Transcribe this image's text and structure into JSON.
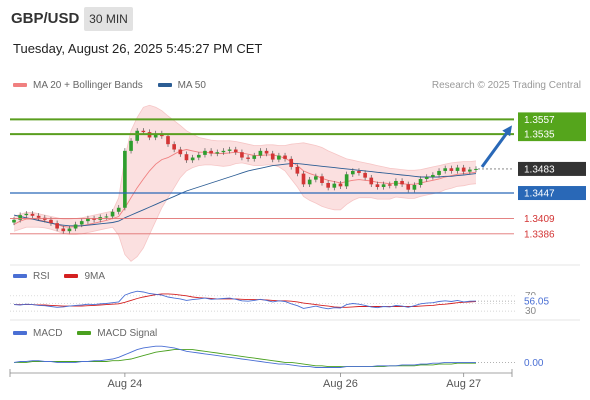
{
  "header": {
    "symbol": "GBP/USD",
    "timeframe": "30 MIN",
    "datetime": "Tuesday, August 26, 2025 5:45:27 PM CET",
    "credit": "Research © 2025 Trading Central"
  },
  "colors": {
    "bollinger": "#f08080",
    "ma50": "#2c5d94",
    "resistance": "#5a9e1f",
    "pivot": "#2968b7",
    "support": "#e07070",
    "rsi": "#4a6fd4",
    "rsi_ma": "#d42020",
    "macd": "#4a6fd4",
    "macd_signal": "#4aa01f",
    "up": "#2e9e2e",
    "down": "#d33535"
  },
  "chart_data": [
    {
      "type": "candlestick",
      "symbol": "GBP/USD",
      "legend": [
        "MA 20 + Bollinger Bands",
        "MA 50"
      ],
      "x_ticks": [
        "Aug 24",
        "Aug 26",
        "Aug 27"
      ],
      "ylim": [
        1.3335,
        1.358
      ],
      "resistance_levels": [
        "1.3557",
        "1.3535"
      ],
      "last_price": "1.3483",
      "pivot": "1.3447",
      "support_levels": [
        "1.3409",
        "1.3386"
      ],
      "close": [
        1.3407,
        1.3414,
        1.3416,
        1.3413,
        1.341,
        1.3407,
        1.3402,
        1.3394,
        1.339,
        1.3394,
        1.34,
        1.3405,
        1.3409,
        1.3407,
        1.3411,
        1.3412,
        1.3419,
        1.3425,
        1.351,
        1.3525,
        1.354,
        1.3538,
        1.353,
        1.3536,
        1.3532,
        1.352,
        1.3512,
        1.3505,
        1.3496,
        1.35,
        1.3504,
        1.351,
        1.3506,
        1.3508,
        1.351,
        1.3512,
        1.3508,
        1.35,
        1.3498,
        1.3503,
        1.351,
        1.3506,
        1.3497,
        1.3503,
        1.3498,
        1.3486,
        1.3476,
        1.346,
        1.3467,
        1.3472,
        1.3462,
        1.3455,
        1.3461,
        1.3457,
        1.3475,
        1.348,
        1.3477,
        1.347,
        1.346,
        1.3456,
        1.346,
        1.3458,
        1.3465,
        1.346,
        1.3452,
        1.3459,
        1.3468,
        1.3471,
        1.3474,
        1.348,
        1.3484,
        1.348,
        1.3485,
        1.3479,
        1.3482,
        1.3483
      ],
      "ma20": [
        1.34,
        1.3405,
        1.3408,
        1.3408,
        1.3407,
        1.3405,
        1.3403,
        1.34,
        1.3397,
        1.3396,
        1.3397,
        1.3398,
        1.34,
        1.3402,
        1.3404,
        1.3406,
        1.3409,
        1.3412,
        1.3425,
        1.344,
        1.3455,
        1.3468,
        1.348,
        1.349,
        1.3497,
        1.35,
        1.3505,
        1.351,
        1.3512,
        1.351,
        1.3508,
        1.3508,
        1.3507,
        1.3506,
        1.3506,
        1.3507,
        1.3508,
        1.3507,
        1.3505,
        1.3503,
        1.3503,
        1.3504,
        1.3504,
        1.3502,
        1.3499,
        1.3494,
        1.3488,
        1.348,
        1.3476,
        1.3473,
        1.3469,
        1.3466,
        1.3464,
        1.3462,
        1.3464,
        1.3466,
        1.3467,
        1.3466,
        1.3465,
        1.3463,
        1.3462,
        1.3461,
        1.3462,
        1.3461,
        1.346,
        1.346,
        1.3462,
        1.3464,
        1.3466,
        1.3468,
        1.3471,
        1.3473,
        1.3475,
        1.3476,
        1.3477,
        1.3478
      ],
      "bb_upper": [
        1.3412,
        1.3415,
        1.3418,
        1.3418,
        1.3416,
        1.3414,
        1.3412,
        1.341,
        1.3408,
        1.3408,
        1.3409,
        1.341,
        1.3412,
        1.3414,
        1.3416,
        1.3418,
        1.342,
        1.344,
        1.35,
        1.354,
        1.356,
        1.3575,
        1.3578,
        1.3575,
        1.357,
        1.3562,
        1.3555,
        1.3548,
        1.354,
        1.3535,
        1.353,
        1.3528,
        1.3526,
        1.3525,
        1.3525,
        1.3525,
        1.3524,
        1.3522,
        1.352,
        1.3518,
        1.3518,
        1.3519,
        1.3519,
        1.3518,
        1.3518,
        1.352,
        1.3521,
        1.3522,
        1.352,
        1.3518,
        1.3515,
        1.351,
        1.3506,
        1.3502,
        1.3498,
        1.3496,
        1.3494,
        1.3492,
        1.349,
        1.3488,
        1.3486,
        1.3484,
        1.3483,
        1.3482,
        1.3481,
        1.3481,
        1.3482,
        1.3484,
        1.3486,
        1.3488,
        1.349,
        1.3492,
        1.3493,
        1.3494,
        1.3494,
        1.3495
      ],
      "bb_lower": [
        1.339,
        1.3393,
        1.3396,
        1.3396,
        1.3396,
        1.3395,
        1.3393,
        1.339,
        1.3387,
        1.3385,
        1.3385,
        1.3386,
        1.3388,
        1.339,
        1.3392,
        1.3394,
        1.3396,
        1.3384,
        1.3355,
        1.3345,
        1.3352,
        1.3365,
        1.3385,
        1.3405,
        1.3425,
        1.344,
        1.3455,
        1.347,
        1.348,
        1.3485,
        1.3488,
        1.3489,
        1.3489,
        1.3488,
        1.3487,
        1.3488,
        1.3491,
        1.3492,
        1.349,
        1.3488,
        1.3488,
        1.3489,
        1.3489,
        1.3486,
        1.348,
        1.3468,
        1.3456,
        1.3442,
        1.3436,
        1.3432,
        1.3427,
        1.3424,
        1.3422,
        1.3422,
        1.343,
        1.3436,
        1.344,
        1.344,
        1.344,
        1.3438,
        1.3438,
        1.3438,
        1.3441,
        1.344,
        1.3439,
        1.3439,
        1.3442,
        1.3444,
        1.3446,
        1.3448,
        1.3452,
        1.3454,
        1.3457,
        1.3458,
        1.346,
        1.3461
      ],
      "ma50": [
        1.3414,
        1.3412,
        1.341,
        1.3408,
        1.3406,
        1.3404,
        1.3402,
        1.34,
        1.3399,
        1.3398,
        1.3398,
        1.3398,
        1.3399,
        1.34,
        1.3401,
        1.3402,
        1.3403,
        1.3405,
        1.341,
        1.3414,
        1.3418,
        1.3422,
        1.3426,
        1.343,
        1.3434,
        1.3438,
        1.3442,
        1.3446,
        1.345,
        1.3453,
        1.3456,
        1.3459,
        1.3462,
        1.3465,
        1.3468,
        1.3471,
        1.3474,
        1.3477,
        1.348,
        1.3482,
        1.3484,
        1.3486,
        1.3488,
        1.3489,
        1.349,
        1.3491,
        1.3491,
        1.349,
        1.3489,
        1.3488,
        1.3487,
        1.3486,
        1.3485,
        1.3484,
        1.3483,
        1.3482,
        1.3481,
        1.348,
        1.3479,
        1.3478,
        1.3477,
        1.3476,
        1.3475,
        1.3474,
        1.3473,
        1.3472,
        1.3471,
        1.3471,
        1.3471,
        1.3471,
        1.3472,
        1.3472,
        1.3473,
        1.3474,
        1.3475,
        1.3476
      ]
    },
    {
      "type": "line",
      "legend": [
        "RSI",
        "9MA"
      ],
      "y_ticks": [
        "70",
        "30"
      ],
      "last_value": "56.05",
      "rsi": [
        47,
        46,
        48,
        47,
        45,
        44,
        42,
        40,
        41,
        43,
        45,
        46,
        48,
        47,
        49,
        50,
        52,
        54,
        72,
        78,
        82,
        80,
        76,
        74,
        72,
        67,
        64,
        62,
        58,
        60,
        62,
        64,
        61,
        62,
        63,
        64,
        61,
        57,
        56,
        58,
        61,
        58,
        54,
        57,
        55,
        49,
        44,
        37,
        40,
        43,
        39,
        36,
        39,
        38,
        47,
        50,
        48,
        45,
        41,
        39,
        42,
        41,
        45,
        43,
        40,
        44,
        49,
        51,
        52,
        55,
        57,
        55,
        58,
        54,
        56,
        56.05
      ],
      "rsi_ma": [
        47,
        47,
        47,
        47,
        46,
        46,
        45,
        44,
        43,
        43,
        43,
        43,
        44,
        45,
        46,
        47,
        48,
        49,
        53,
        58,
        63,
        67,
        70,
        73,
        75,
        75,
        74,
        72,
        70,
        67,
        65,
        64,
        63,
        62,
        62,
        62,
        62,
        61,
        60,
        60,
        60,
        59,
        58,
        57,
        57,
        56,
        54,
        51,
        49,
        47,
        45,
        43,
        41,
        40,
        40,
        41,
        42,
        42,
        42,
        42,
        42,
        42,
        42,
        42,
        42,
        42,
        43,
        44,
        45,
        47,
        48,
        50,
        52,
        53,
        54,
        55
      ]
    },
    {
      "type": "line",
      "legend": [
        "MACD",
        "MACD Signal"
      ],
      "last_value": "0.00",
      "macd": [
        0.0001,
        0.0002,
        0.0002,
        0.0003,
        0.0003,
        0.0002,
        0.0002,
        0.0001,
        0.0001,
        0.0001,
        0.0001,
        0.0002,
        0.0002,
        0.0003,
        0.0003,
        0.0004,
        0.0005,
        0.0007,
        0.001,
        0.0013,
        0.0016,
        0.0018,
        0.0019,
        0.002,
        0.002,
        0.0019,
        0.0018,
        0.0016,
        0.0014,
        0.0013,
        0.0012,
        0.0011,
        0.001,
        0.0009,
        0.0008,
        0.0007,
        0.0006,
        0.0005,
        0.0004,
        0.0003,
        0.0002,
        0.0001,
        0.0,
        -0.0001,
        -0.0001,
        -0.0002,
        -0.0003,
        -0.0004,
        -0.0004,
        -0.0005,
        -0.0005,
        -0.0005,
        -0.0005,
        -0.0005,
        -0.0004,
        -0.0004,
        -0.0004,
        -0.0004,
        -0.0004,
        -0.0003,
        -0.0003,
        -0.0003,
        -0.0003,
        -0.0002,
        -0.0002,
        -0.0002,
        -0.0001,
        -0.0001,
        0.0,
        0.0,
        0.0001,
        0.0001,
        0.0001,
        0.0001,
        0.0001,
        0.0001
      ],
      "signal": [
        0.0001,
        0.0001,
        0.0001,
        0.0002,
        0.0002,
        0.0002,
        0.0002,
        0.0002,
        0.0002,
        0.0002,
        0.0002,
        0.0002,
        0.0002,
        0.0002,
        0.0002,
        0.0002,
        0.0003,
        0.0003,
        0.0004,
        0.0005,
        0.0007,
        0.0009,
        0.0011,
        0.0013,
        0.0014,
        0.0015,
        0.0016,
        0.0016,
        0.0016,
        0.0016,
        0.0015,
        0.0014,
        0.0013,
        0.0012,
        0.0011,
        0.001,
        0.0009,
        0.0008,
        0.0007,
        0.0006,
        0.0005,
        0.0004,
        0.0003,
        0.0002,
        0.0001,
        0.0001,
        0.0,
        -0.0001,
        -0.0002,
        -0.0003,
        -0.0003,
        -0.0004,
        -0.0004,
        -0.0004,
        -0.0004,
        -0.0004,
        -0.0004,
        -0.0004,
        -0.0004,
        -0.0004,
        -0.0004,
        -0.0003,
        -0.0003,
        -0.0003,
        -0.0003,
        -0.0003,
        -0.0002,
        -0.0002,
        -0.0002,
        -0.0001,
        -0.0001,
        -0.0001,
        0.0,
        0.0,
        0.0,
        0.0
      ]
    }
  ]
}
